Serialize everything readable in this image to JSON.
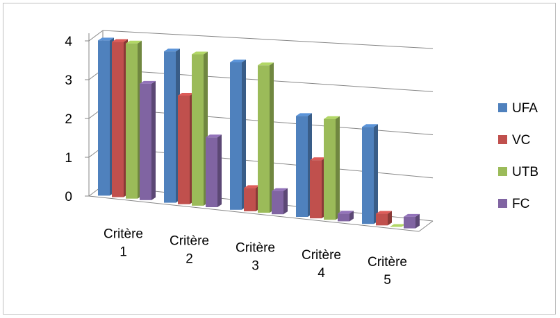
{
  "chart_data": {
    "type": "bar",
    "style": "3d-clustered-column",
    "categories": [
      "Critère 1",
      "Critère 2",
      "Critère 3",
      "Critère 4",
      "Critère 5"
    ],
    "series": [
      {
        "name": "UFA",
        "color": "#4F81BD",
        "values": [
          4,
          3.9,
          3.8,
          2.6,
          2.5
        ]
      },
      {
        "name": "VC",
        "color": "#C0504D",
        "values": [
          4,
          2.8,
          0.6,
          1.5,
          0.3
        ]
      },
      {
        "name": "UTB",
        "color": "#9BBB59",
        "values": [
          4,
          3.9,
          3.8,
          2.6,
          0
        ]
      },
      {
        "name": "FC",
        "color": "#8064A2",
        "values": [
          3,
          1.8,
          0.6,
          0.2,
          0.3
        ]
      }
    ],
    "yticks": [
      "0",
      "1",
      "2",
      "3",
      "4"
    ],
    "ylim": [
      0,
      4
    ],
    "grid": true,
    "legend": "right"
  }
}
